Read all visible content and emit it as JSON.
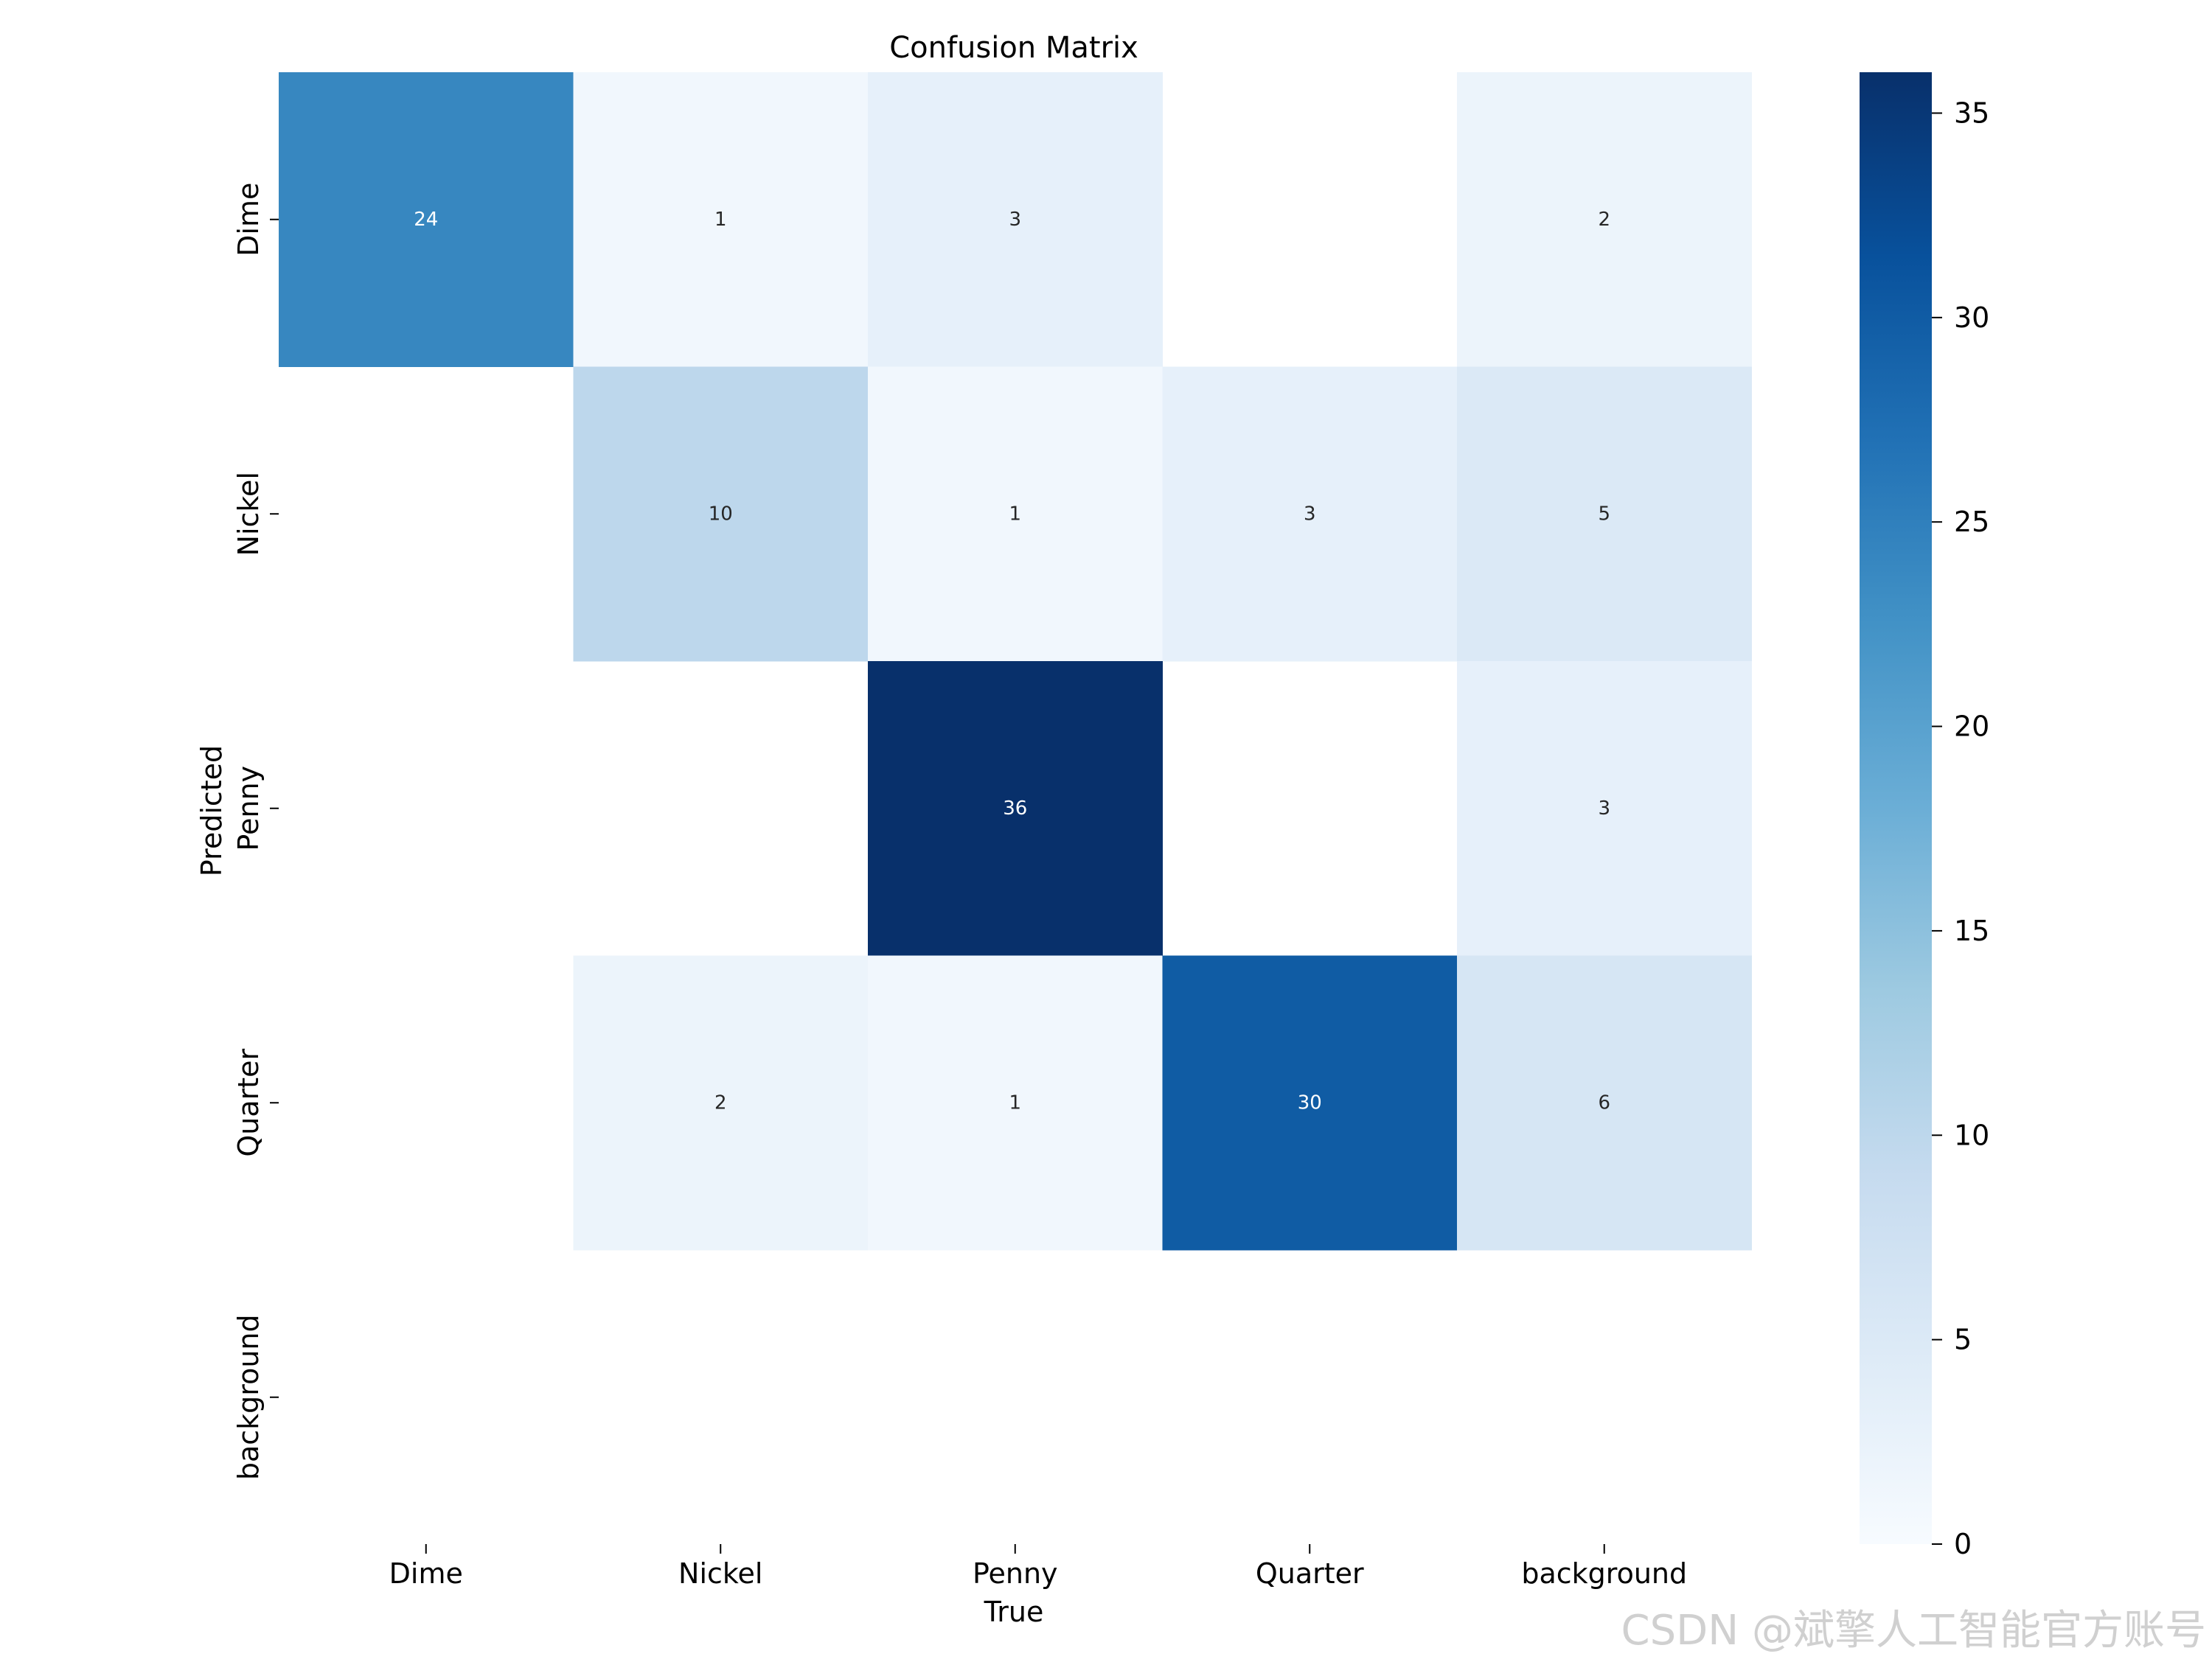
{
  "chart_data": {
    "type": "heatmap",
    "title": "Confusion Matrix",
    "xlabel": "True",
    "ylabel": "Predicted",
    "x_categories": [
      "Dime",
      "Nickel",
      "Penny",
      "Quarter",
      "background"
    ],
    "y_categories": [
      "Dime",
      "Nickel",
      "Penny",
      "Quarter",
      "background"
    ],
    "values": [
      [
        24,
        1,
        3,
        null,
        2
      ],
      [
        null,
        10,
        1,
        3,
        5
      ],
      [
        null,
        null,
        36,
        null,
        3
      ],
      [
        null,
        2,
        1,
        30,
        6
      ],
      [
        null,
        null,
        null,
        null,
        null
      ]
    ],
    "colormap": "Blues",
    "colorbar": {
      "min": 0,
      "max": 36,
      "ticks": [
        0,
        5,
        10,
        15,
        20,
        25,
        30,
        35
      ]
    }
  },
  "watermark": "CSDN @斌擎人工智能官方账号"
}
